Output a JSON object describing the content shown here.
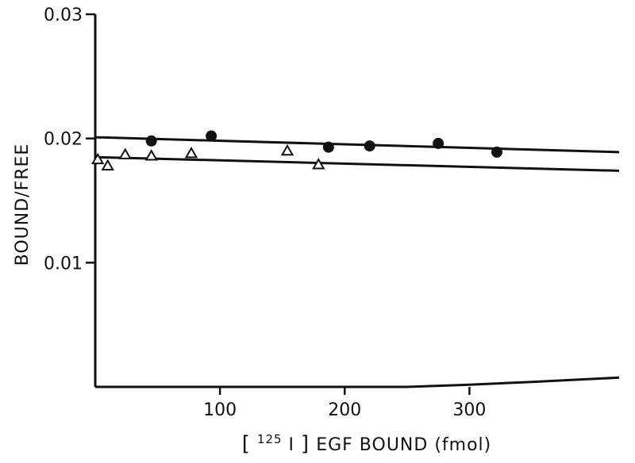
{
  "chart_data": {
    "type": "scatter",
    "xlabel": {
      "bracket_open": "[",
      "superscript": "125",
      "element": "I",
      "bracket_close": "]",
      "rest": " EGF BOUND (fmol)"
    },
    "ylabel": "BOUND/FREE",
    "xlim": [
      0,
      420
    ],
    "ylim": [
      0.0,
      0.03
    ],
    "x_ticks": [
      100,
      200,
      300
    ],
    "x_tick_labels": [
      "100",
      "200",
      "300"
    ],
    "y_ticks": [
      0.01,
      0.02,
      0.03
    ],
    "y_tick_labels": [
      "0.01",
      "0.02",
      "0.03"
    ],
    "grid": false,
    "series": [
      {
        "marker": "filled-circle",
        "color": "#111111",
        "points": [
          {
            "x": 45,
            "y": 0.0198
          },
          {
            "x": 93,
            "y": 0.0202
          },
          {
            "x": 187,
            "y": 0.0193
          },
          {
            "x": 220,
            "y": 0.0194
          },
          {
            "x": 275,
            "y": 0.0196
          },
          {
            "x": 322,
            "y": 0.0189
          }
        ],
        "fit": {
          "x": [
            0,
            420
          ],
          "y": [
            0.0201,
            0.0189
          ]
        }
      },
      {
        "marker": "open-triangle",
        "color": "#111111",
        "points": [
          {
            "x": 2,
            "y": 0.0183
          },
          {
            "x": 10,
            "y": 0.0178
          },
          {
            "x": 24,
            "y": 0.0187
          },
          {
            "x": 45,
            "y": 0.0186
          },
          {
            "x": 77,
            "y": 0.0188
          },
          {
            "x": 154,
            "y": 0.019
          },
          {
            "x": 179,
            "y": 0.0179
          }
        ],
        "fit": {
          "x": [
            0,
            420
          ],
          "y": [
            0.0185,
            0.0174
          ]
        }
      }
    ],
    "baseline_curve": {
      "x": [
        0,
        250,
        300,
        350,
        380,
        420
      ],
      "y": [
        0.0,
        0.0,
        0.00018,
        0.0004,
        0.00055,
        0.00075
      ]
    }
  }
}
